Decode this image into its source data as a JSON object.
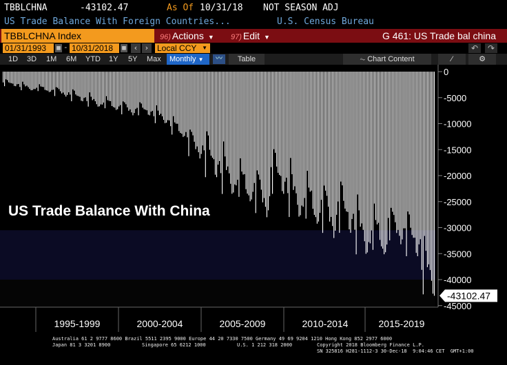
{
  "header": {
    "ticker": "TBBLCHNA",
    "value": "-43102.47",
    "asof_label": "As Of",
    "asof_date": "10/31/18",
    "season": "NOT SEASON ADJ",
    "description": "US Trade Balance With Foreign Countries...",
    "source": "U.S. Census Bureau"
  },
  "menubar": {
    "index_label": "TBBLCHNA Index",
    "actions_num": "96)",
    "actions_label": "Actions",
    "edit_num": "97)",
    "edit_label": "Edit",
    "page_title": "G 461: US Trade bal china"
  },
  "controls": {
    "start_date": "01/31/1993",
    "end_date": "10/31/2018",
    "currency": "Local CCY",
    "prev_icon": "chevron-left-icon",
    "next_icon": "chevron-right-icon"
  },
  "toolbar": {
    "periods": [
      "1D",
      "3D",
      "1M",
      "6M",
      "YTD",
      "1Y",
      "5Y",
      "Max"
    ],
    "frequency": "Monthly",
    "table_label": "Table",
    "chart_content_label": "Chart Content"
  },
  "chart_data": {
    "type": "bar",
    "title": "US Trade Balance With China",
    "frequency": "monthly",
    "start": "1993-01",
    "end": "2018-10",
    "last_value": -43102.47,
    "last_value_label": "-43102.47",
    "ylim": [
      -45000,
      0
    ],
    "yticks": [
      0,
      -5000,
      -10000,
      -15000,
      -20000,
      -25000,
      -30000,
      -35000,
      -40000,
      -45000
    ],
    "ytick_labels": [
      "0",
      "-5000",
      "-10000",
      "-15000",
      "-20000",
      "-25000",
      "-30000",
      "-35000",
      "-40000",
      "-45000"
    ],
    "x_groups": [
      "1995-1999",
      "2000-2004",
      "2005-2009",
      "2010-2014",
      "2015-2019"
    ],
    "annual_minimum": [
      -2800,
      -3700,
      -4000,
      -4800,
      -5700,
      -6900,
      -7500,
      -8400,
      -8400,
      -10100,
      -12800,
      -16700,
      -20300,
      -24000,
      -25500,
      -28000,
      -23500,
      -28400,
      -30000,
      -32000,
      -31000,
      -35500,
      -35900,
      -33200,
      -35500,
      -43102.47
    ],
    "annual_maximum": [
      -1200,
      -1700,
      -2000,
      -2300,
      -2900,
      -3600,
      -4000,
      -4700,
      -5300,
      -6000,
      -7500,
      -9000,
      -9300,
      -12000,
      -14500,
      -15500,
      -12700,
      -15000,
      -16500,
      -18000,
      -18500,
      -22000,
      -23000,
      -23500,
      -24500,
      -30000
    ],
    "grid": false,
    "legend": "none",
    "bar_color": "#ffffff",
    "background": "#000000"
  },
  "footer": {
    "line1": "Australia 61 2 9777 8600 Brazil 5511 2395 9000 Europe 44 20 7330 7500 Germany 49 69 9204 1210 Hong Kong 852 2977 6000",
    "line2a": "Japan 81 3 3201 8900",
    "line2b": "Singapore 65 6212 1000",
    "line2c": "U.S. 1 212 318 2000",
    "line2d": "Copyright 2018 Bloomberg Finance L.P.",
    "line3": "SN 325816 H281-1112-3 30-Dec-18  9:04:46 CET  GMT+1:00"
  },
  "colors": {
    "accent_orange": "#f39a1e",
    "menu_red": "#7b0d12",
    "link_blue": "#6fa8dc",
    "active_blue": "#1f66c7"
  }
}
